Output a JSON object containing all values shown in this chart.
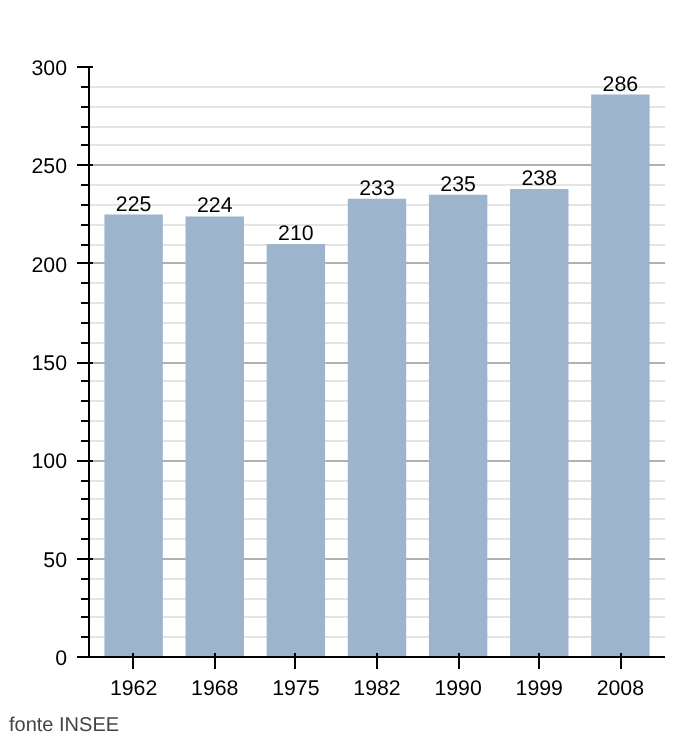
{
  "chart_data": {
    "type": "bar",
    "categories": [
      "1962",
      "1968",
      "1975",
      "1982",
      "1990",
      "1999",
      "2008"
    ],
    "values": [
      225,
      224,
      210,
      233,
      235,
      238,
      286
    ],
    "color": "#9cb4cc",
    "ylim": [
      0,
      300
    ],
    "yticks": [
      0,
      50,
      100,
      150,
      200,
      250,
      300
    ],
    "grid": "y",
    "data_labels": true,
    "annotations": [
      "fonte INSEE"
    ]
  }
}
